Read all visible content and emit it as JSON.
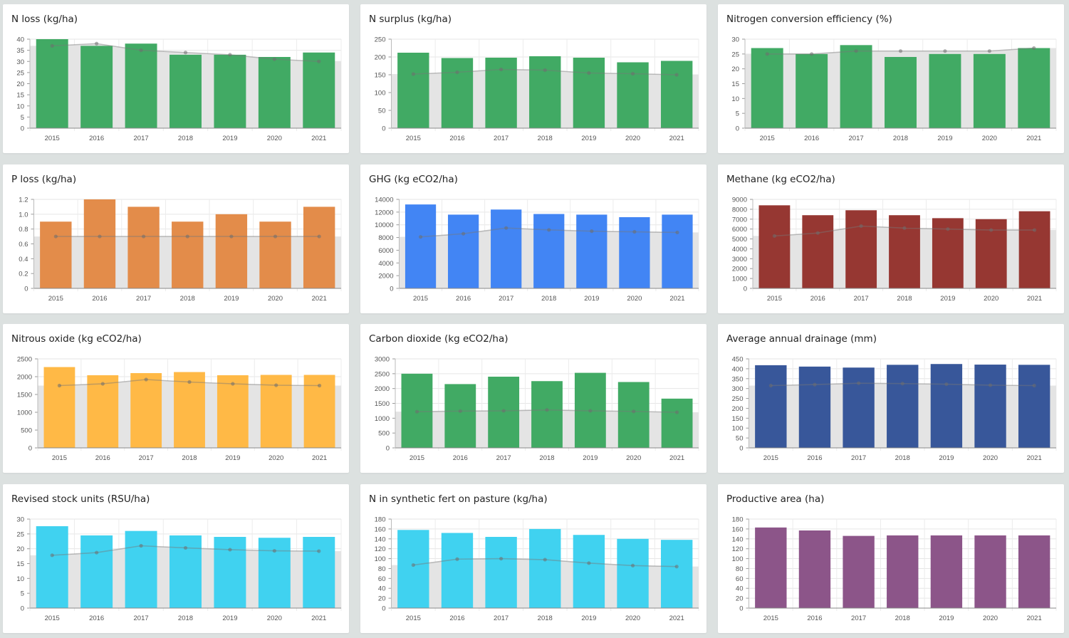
{
  "chart_data": [
    {
      "type": "bar",
      "title": "N loss (kg/ha)",
      "color": "#41aa64",
      "categories": [
        "2015",
        "2016",
        "2017",
        "2018",
        "2019",
        "2020",
        "2021"
      ],
      "values": [
        40,
        37,
        38,
        33,
        33,
        32,
        34
      ],
      "line_values": [
        37,
        38,
        35,
        34,
        33,
        31,
        30
      ],
      "yticks": [
        0,
        5,
        10,
        15,
        20,
        25,
        30,
        35,
        40
      ],
      "ylim": [
        0,
        40
      ]
    },
    {
      "type": "bar",
      "title": "N surplus (kg/ha)",
      "color": "#41aa64",
      "categories": [
        "2015",
        "2016",
        "2017",
        "2018",
        "2019",
        "2020",
        "2021"
      ],
      "values": [
        212,
        197,
        198,
        202,
        198,
        185,
        189
      ],
      "line_values": [
        152,
        157,
        165,
        163,
        155,
        153,
        150
      ],
      "yticks": [
        0,
        50,
        100,
        150,
        200,
        250
      ],
      "ylim": [
        0,
        250
      ]
    },
    {
      "type": "bar",
      "title": "Nitrogen conversion efficiency (%)",
      "color": "#41aa64",
      "categories": [
        "2015",
        "2016",
        "2017",
        "2018",
        "2019",
        "2020",
        "2021"
      ],
      "values": [
        27,
        25,
        28,
        24,
        25,
        25,
        27
      ],
      "line_values": [
        25,
        25,
        26,
        26,
        26,
        26,
        27
      ],
      "yticks": [
        0,
        5,
        10,
        15,
        20,
        25,
        30
      ],
      "ylim": [
        0,
        30
      ]
    },
    {
      "type": "bar",
      "title": "P loss (kg/ha)",
      "color": "#e38c4a",
      "categories": [
        "2015",
        "2016",
        "2017",
        "2018",
        "2019",
        "2020",
        "2021"
      ],
      "values": [
        0.9,
        1.2,
        1.1,
        0.9,
        1.0,
        0.9,
        1.1
      ],
      "line_values": [
        0.7,
        0.7,
        0.7,
        0.7,
        0.7,
        0.7,
        0.7
      ],
      "yticks": [
        "0",
        "0.2",
        "0.4",
        "0.6",
        "0.8",
        "1.0",
        "1.2"
      ],
      "ylim": [
        0,
        1.2
      ]
    },
    {
      "type": "bar",
      "title": "GHG (kg eCO2/ha)",
      "color": "#4285f4",
      "categories": [
        "2015",
        "2016",
        "2017",
        "2018",
        "2019",
        "2020",
        "2021"
      ],
      "values": [
        13200,
        11600,
        12400,
        11700,
        11600,
        11200,
        11600
      ],
      "line_values": [
        8100,
        8600,
        9500,
        9200,
        9000,
        8900,
        8800
      ],
      "yticks": [
        0,
        2000,
        4000,
        6000,
        8000,
        10000,
        12000,
        14000
      ],
      "ylim": [
        0,
        14000
      ]
    },
    {
      "type": "bar",
      "title": "Methane (kg eCO2/ha)",
      "color": "#963732",
      "categories": [
        "2015",
        "2016",
        "2017",
        "2018",
        "2019",
        "2020",
        "2021"
      ],
      "values": [
        8400,
        7400,
        7900,
        7400,
        7100,
        7000,
        7800
      ],
      "line_values": [
        5300,
        5600,
        6300,
        6100,
        6000,
        5900,
        5900
      ],
      "yticks": [
        0,
        1000,
        2000,
        3000,
        4000,
        5000,
        6000,
        7000,
        8000,
        9000
      ],
      "ylim": [
        0,
        9000
      ]
    },
    {
      "type": "bar",
      "title": "Nitrous oxide (kg eCO2/ha)",
      "color": "#ffb946",
      "categories": [
        "2015",
        "2016",
        "2017",
        "2018",
        "2019",
        "2020",
        "2021"
      ],
      "values": [
        2270,
        2040,
        2100,
        2130,
        2040,
        2050,
        2050
      ],
      "line_values": [
        1750,
        1800,
        1920,
        1850,
        1800,
        1760,
        1750
      ],
      "yticks": [
        0,
        500,
        1000,
        1500,
        2000,
        2500
      ],
      "ylim": [
        0,
        2500
      ]
    },
    {
      "type": "bar",
      "title": "Carbon dioxide (kg eCO2/ha)",
      "color": "#41aa64",
      "categories": [
        "2015",
        "2016",
        "2017",
        "2018",
        "2019",
        "2020",
        "2021"
      ],
      "values": [
        2500,
        2150,
        2400,
        2250,
        2530,
        2220,
        1660
      ],
      "line_values": [
        1220,
        1240,
        1250,
        1280,
        1250,
        1230,
        1200
      ],
      "yticks": [
        0,
        500,
        1000,
        1500,
        2000,
        2500,
        3000
      ],
      "ylim": [
        0,
        3000
      ]
    },
    {
      "type": "bar",
      "title": "Average annual drainage (mm)",
      "color": "#38579a",
      "categories": [
        "2015",
        "2016",
        "2017",
        "2018",
        "2019",
        "2020",
        "2021"
      ],
      "values": [
        418,
        411,
        406,
        420,
        424,
        421,
        420
      ],
      "line_values": [
        315,
        320,
        327,
        325,
        322,
        317,
        315
      ],
      "yticks": [
        0,
        50,
        100,
        150,
        200,
        250,
        300,
        350,
        400,
        450
      ],
      "ylim": [
        0,
        450
      ]
    },
    {
      "type": "bar",
      "title": "Revised stock units (RSU/ha)",
      "color": "#40d2f0",
      "categories": [
        "2015",
        "2016",
        "2017",
        "2018",
        "2019",
        "2020",
        "2021"
      ],
      "values": [
        27.6,
        24.5,
        26,
        24.5,
        24,
        23.7,
        24
      ],
      "line_values": [
        17.8,
        18.7,
        21,
        20.3,
        19.7,
        19.3,
        19.2
      ],
      "yticks": [
        0,
        5,
        10,
        15,
        20,
        25,
        30
      ],
      "ylim": [
        0,
        30
      ]
    },
    {
      "type": "bar",
      "title": "N in synthetic fert on pasture (kg/ha)",
      "color": "#40d2f0",
      "categories": [
        "2015",
        "2016",
        "2017",
        "2018",
        "2019",
        "2020",
        "2021"
      ],
      "values": [
        158,
        152,
        144,
        160,
        148,
        140,
        138
      ],
      "line_values": [
        87,
        99,
        100,
        98,
        91,
        86,
        84
      ],
      "yticks": [
        0,
        20,
        40,
        60,
        80,
        100,
        120,
        140,
        160,
        180
      ],
      "ylim": [
        0,
        180
      ]
    },
    {
      "type": "bar",
      "title": "Productive area (ha)",
      "color": "#8c5589",
      "categories": [
        "2015",
        "2016",
        "2017",
        "2018",
        "2019",
        "2020",
        "2021"
      ],
      "values": [
        163,
        157,
        146,
        147,
        147,
        147,
        147
      ],
      "line_values": null,
      "yticks": [
        0,
        20,
        40,
        60,
        80,
        100,
        120,
        140,
        160,
        180
      ],
      "ylim": [
        0,
        180
      ]
    }
  ]
}
